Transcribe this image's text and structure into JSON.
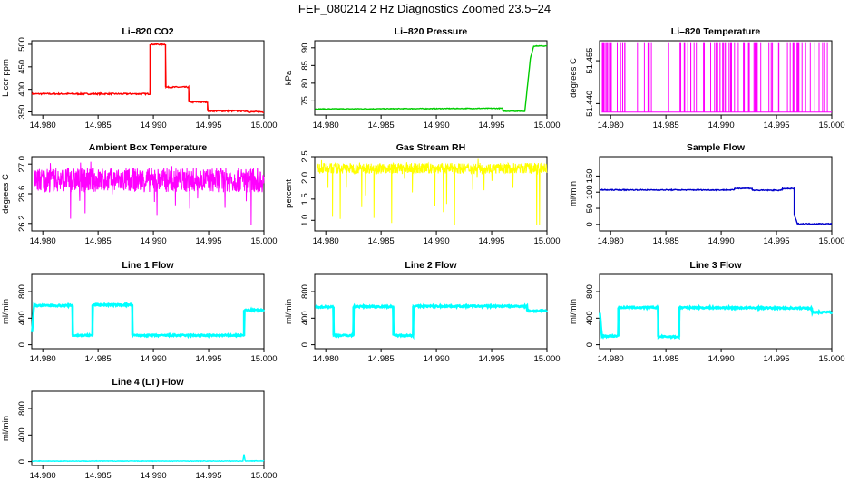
{
  "title": "FEF_080214  2 Hz Diagnostics Zoomed 23.5–24",
  "chart_data": [
    {
      "type": "line",
      "title": "Li–820 CO2",
      "ylabel": "Licor ppm",
      "color": "#ff0000",
      "xlim": [
        14.979,
        15.0
      ],
      "ylim": [
        343,
        508
      ],
      "xticks": [
        "14.980",
        "14.985",
        "14.990",
        "14.995",
        "15.000"
      ],
      "yticks": [
        "350",
        "400",
        "450",
        "500"
      ],
      "steps": [
        [
          14.979,
          390
        ],
        [
          14.9897,
          390
        ],
        [
          14.9897,
          500
        ],
        [
          14.9911,
          500
        ],
        [
          14.9911,
          405
        ],
        [
          14.9932,
          405
        ],
        [
          14.9932,
          372
        ],
        [
          14.9949,
          372
        ],
        [
          14.9949,
          352
        ],
        [
          14.9985,
          352
        ],
        [
          14.9985,
          350
        ],
        [
          15.0,
          350
        ]
      ],
      "noise": 1.5
    },
    {
      "type": "line",
      "title": "Li–820 Pressure",
      "ylabel": "kPa",
      "color": "#00cc00",
      "xlim": [
        14.979,
        15.0
      ],
      "ylim": [
        71,
        92
      ],
      "xticks": [
        "14.980",
        "14.985",
        "14.990",
        "14.995",
        "15.000"
      ],
      "yticks": [
        "75",
        "80",
        "85",
        "90"
      ],
      "steps": [
        [
          14.979,
          72.7
        ],
        [
          14.996,
          72.9
        ],
        [
          14.996,
          72.1
        ],
        [
          14.998,
          72.1
        ],
        [
          14.9985,
          87
        ],
        [
          14.9988,
          90.5
        ],
        [
          15.0,
          90.5
        ]
      ],
      "noise": 0.1
    },
    {
      "type": "line",
      "title": "Li–820 Temperature",
      "ylabel": "degrees C",
      "color": "#ff00ff",
      "xlim": [
        14.979,
        15.0
      ],
      "ylim": [
        51.436,
        51.462
      ],
      "xticks": [
        "14.980",
        "14.985",
        "14.990",
        "14.995",
        "15.000"
      ],
      "yticks": [
        "51.440",
        "51.455"
      ],
      "baseline": 51.437,
      "spike": 51.4615
    },
    {
      "type": "line",
      "title": "Ambient Box Temperature",
      "ylabel": "degrees C",
      "color": "#ff00ff",
      "xlim": [
        14.979,
        15.0
      ],
      "ylim": [
        26.1,
        27.1
      ],
      "xticks": [
        "14.980",
        "14.985",
        "14.990",
        "14.995",
        "15.000"
      ],
      "yticks": [
        "26.2",
        "26.6",
        "27.0"
      ],
      "band": [
        26.62,
        26.95
      ],
      "spike_range": [
        26.15,
        27.05
      ]
    },
    {
      "type": "line",
      "title": "Gas Stream RH",
      "ylabel": "percent",
      "color": "#ffff00",
      "xlim": [
        14.979,
        15.0
      ],
      "ylim": [
        0.75,
        2.5
      ],
      "xticks": [
        "14.980",
        "14.985",
        "14.990",
        "14.995",
        "15.000"
      ],
      "yticks": [
        "1.0",
        "1.5",
        "2.0",
        "2.5"
      ],
      "band": [
        2.1,
        2.35
      ],
      "spike_range": [
        0.85,
        2.45
      ]
    },
    {
      "type": "line",
      "title": "Sample Flow",
      "ylabel": "ml/min",
      "color": "#0000cc",
      "xlim": [
        14.979,
        15.0
      ],
      "ylim": [
        -20,
        210
      ],
      "xticks": [
        "14.980",
        "14.985",
        "14.990",
        "14.995",
        "15.000"
      ],
      "yticks": [
        "0",
        "50",
        "100",
        "150"
      ],
      "steps": [
        [
          14.979,
          107
        ],
        [
          14.9912,
          107
        ],
        [
          14.9912,
          112
        ],
        [
          14.9928,
          112
        ],
        [
          14.9928,
          106
        ],
        [
          14.9955,
          106
        ],
        [
          14.9955,
          111
        ],
        [
          14.9966,
          111
        ],
        [
          14.9966,
          30
        ],
        [
          14.9969,
          2
        ],
        [
          15.0,
          2
        ]
      ],
      "noise": 1.5
    },
    {
      "type": "line",
      "title": "Line 1 Flow",
      "ylabel": "ml/min",
      "color": "#00ffff",
      "xlim": [
        14.979,
        15.0
      ],
      "ylim": [
        -60,
        1060
      ],
      "xticks": [
        "14.980",
        "14.985",
        "14.990",
        "14.995",
        "15.000"
      ],
      "yticks": [
        "0",
        "400",
        "800"
      ],
      "steps": [
        [
          14.979,
          140
        ],
        [
          14.9792,
          590
        ],
        [
          14.9827,
          590
        ],
        [
          14.9827,
          140
        ],
        [
          14.9845,
          140
        ],
        [
          14.9845,
          600
        ],
        [
          14.9881,
          600
        ],
        [
          14.9881,
          140
        ],
        [
          14.9982,
          140
        ],
        [
          14.9982,
          520
        ],
        [
          15.0,
          520
        ]
      ],
      "noise": 12
    },
    {
      "type": "line",
      "title": "Line 2 Flow",
      "ylabel": "ml/min",
      "color": "#00ffff",
      "xlim": [
        14.979,
        15.0
      ],
      "ylim": [
        -60,
        1060
      ],
      "xticks": [
        "14.980",
        "14.985",
        "14.990",
        "14.995",
        "15.000"
      ],
      "yticks": [
        "0",
        "400",
        "800"
      ],
      "steps": [
        [
          14.979,
          570
        ],
        [
          14.9807,
          570
        ],
        [
          14.9807,
          140
        ],
        [
          14.9825,
          140
        ],
        [
          14.9825,
          575
        ],
        [
          14.9861,
          575
        ],
        [
          14.9861,
          140
        ],
        [
          14.9879,
          140
        ],
        [
          14.9879,
          580
        ],
        [
          14.9982,
          580
        ],
        [
          14.9982,
          510
        ],
        [
          15.0,
          510
        ]
      ],
      "noise": 12
    },
    {
      "type": "line",
      "title": "Line 3 Flow",
      "ylabel": "ml/min",
      "color": "#00ffff",
      "xlim": [
        14.979,
        15.0
      ],
      "ylim": [
        -60,
        1060
      ],
      "xticks": [
        "14.980",
        "14.985",
        "14.990",
        "14.995",
        "15.000"
      ],
      "yticks": [
        "0",
        "400",
        "800"
      ],
      "steps": [
        [
          14.979,
          530
        ],
        [
          14.9792,
          130
        ],
        [
          14.9807,
          130
        ],
        [
          14.9807,
          560
        ],
        [
          14.9843,
          560
        ],
        [
          14.9843,
          120
        ],
        [
          14.9862,
          120
        ],
        [
          14.9862,
          560
        ],
        [
          14.9982,
          550
        ],
        [
          14.9982,
          490
        ],
        [
          15.0,
          490
        ]
      ],
      "noise": 12
    },
    {
      "type": "line",
      "title": "Line 4 (LT) Flow",
      "ylabel": "ml/min",
      "color": "#00ffff",
      "xlim": [
        14.979,
        15.0
      ],
      "ylim": [
        -60,
        1060
      ],
      "xticks": [
        "14.980",
        "14.985",
        "14.990",
        "14.995",
        "15.000"
      ],
      "yticks": [
        "0",
        "400",
        "800"
      ],
      "steps": [
        [
          14.979,
          8
        ],
        [
          14.9981,
          8
        ],
        [
          14.9982,
          110
        ],
        [
          14.9983,
          10
        ],
        [
          15.0,
          10
        ]
      ],
      "noise": 4
    }
  ]
}
